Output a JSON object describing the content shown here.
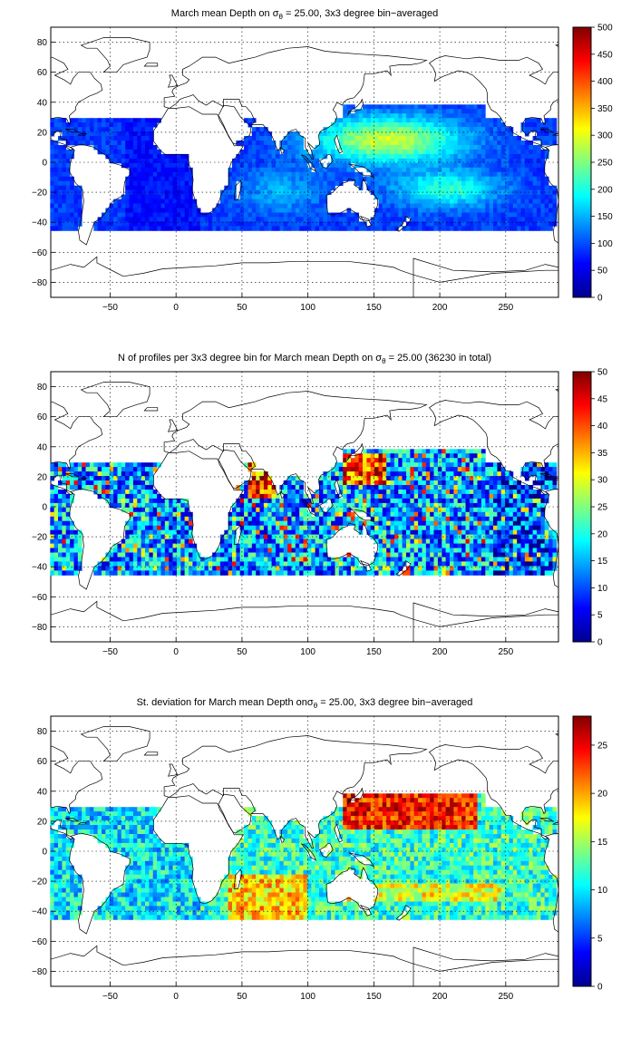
{
  "panels": [
    {
      "title_pre": "March mean Depth on σ",
      "title_sub": "θ",
      "title_post": " = 25.00, 3x3 degree bin−averaged",
      "colorbar": {
        "min": 0,
        "max": 500,
        "ticks": [
          "0",
          "50",
          "100",
          "150",
          "200",
          "250",
          "300",
          "350",
          "400",
          "450",
          "500"
        ]
      },
      "xticks": [
        "−50",
        "0",
        "50",
        "100",
        "150",
        "200",
        "250"
      ],
      "yticks": [
        "80",
        "60",
        "40",
        "20",
        "0",
        "−20",
        "−40",
        "−60",
        "−80"
      ]
    },
    {
      "title_pre": "N of profiles per 3x3 degree bin for March mean Depth on σ",
      "title_sub": "θ",
      "title_post": " = 25.00 (36230 in total)",
      "colorbar": {
        "min": 0,
        "max": 50,
        "ticks": [
          "0",
          "5",
          "10",
          "15",
          "20",
          "25",
          "30",
          "35",
          "40",
          "45",
          "50"
        ]
      },
      "xticks": [
        "−50",
        "0",
        "50",
        "100",
        "150",
        "200",
        "250"
      ],
      "yticks": [
        "80",
        "60",
        "40",
        "20",
        "0",
        "−20",
        "−40",
        "−60",
        "−80"
      ]
    },
    {
      "title_pre": "St. deviation for March mean Depth onσ",
      "title_sub": "θ",
      "title_post": " = 25.00, 3x3 degree bin−averaged",
      "colorbar": {
        "min": 0,
        "max": 28,
        "ticks": [
          "0",
          "5",
          "10",
          "15",
          "20",
          "25"
        ]
      },
      "xticks": [
        "−50",
        "0",
        "50",
        "100",
        "150",
        "200",
        "250"
      ],
      "yticks": [
        "80",
        "60",
        "40",
        "20",
        "0",
        "−20",
        "−40",
        "−60",
        "−80"
      ]
    }
  ],
  "colors": {
    "jet_low": "#00008f",
    "jet_high": "#800000",
    "coast": "#000000",
    "grid": "#000000"
  }
}
